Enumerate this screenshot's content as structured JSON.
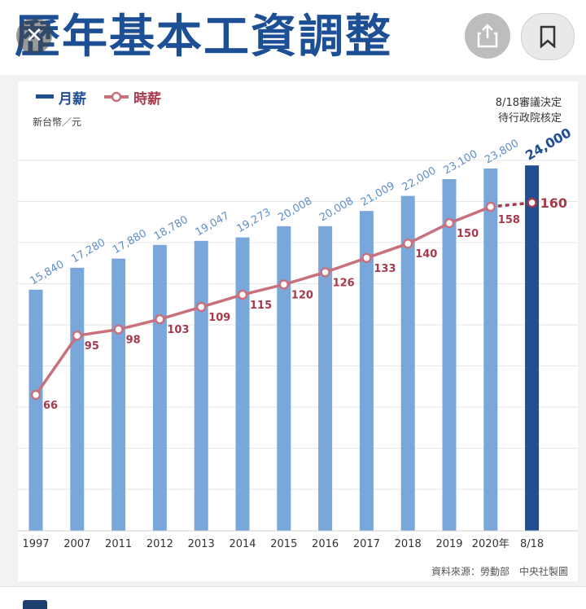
{
  "header": {
    "title": "歷年基本工資調整"
  },
  "icons": {
    "close": "close-icon",
    "share": "share-icon",
    "bookmark": "bookmark-icon"
  },
  "colors": {
    "bar": "#7aa7d9",
    "bar_highlight": "#1f4e93",
    "line": "#c9707d",
    "line_label": "#a63a4c",
    "bar_label": "#5f8fc8",
    "bar_label_highlight": "#1f4e93"
  },
  "chart_data": {
    "type": "bar",
    "categories": [
      "1997",
      "2007",
      "2011",
      "2012",
      "2013",
      "2014",
      "2015",
      "2016",
      "2017",
      "2018",
      "2019",
      "2020年",
      "8/18"
    ],
    "series": [
      {
        "name": "月薪",
        "type": "bar",
        "values": [
          15840,
          17280,
          17880,
          18780,
          19047,
          19273,
          20008,
          20008,
          21009,
          22000,
          23100,
          23800,
          24000
        ],
        "labels": [
          "15,840",
          "17,280",
          "17,880",
          "18,780",
          "19,047",
          "19,273",
          "20,008",
          "20,008",
          "21,009",
          "22,000",
          "23,100",
          "23,800",
          "24,000"
        ]
      },
      {
        "name": "時薪",
        "type": "line",
        "values": [
          66,
          95,
          98,
          103,
          109,
          115,
          120,
          126,
          133,
          140,
          150,
          158,
          160
        ],
        "labels": [
          "66",
          "95",
          "98",
          "103",
          "109",
          "115",
          "120",
          "126",
          "133",
          "140",
          "150",
          "158",
          "160"
        ]
      }
    ],
    "ylabel": "新台幣／元",
    "note_line1": "8/18審議決定",
    "note_line2": "待行政院核定",
    "source": "資料來源：勞動部　中央社製圖",
    "legend": "top-left",
    "grid": true,
    "highlight_last": true,
    "last_line_segment_dashed": true
  }
}
